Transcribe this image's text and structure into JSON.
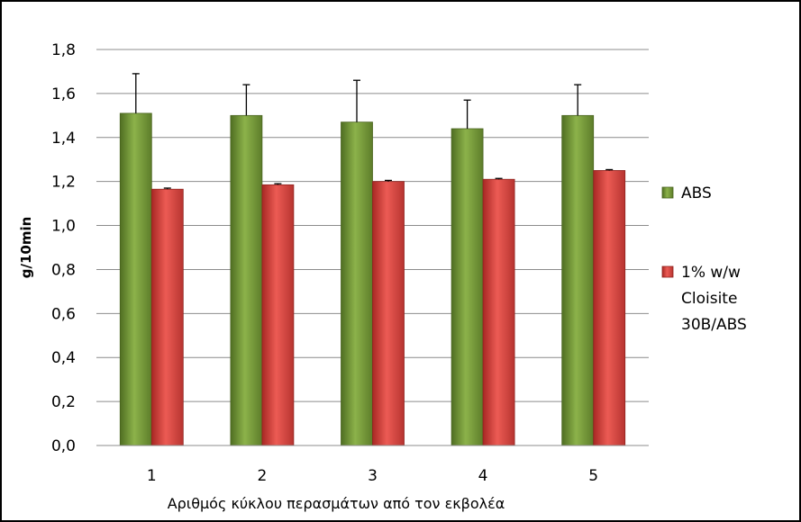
{
  "chart_data": {
    "type": "bar",
    "title": "",
    "xlabel": "Αριθμός κύκλου περασμάτων από τον εκβολέα",
    "ylabel": "g/10min",
    "categories": [
      "1",
      "2",
      "3",
      "4",
      "5"
    ],
    "ylim": [
      0,
      1.8
    ],
    "ytick_labels": [
      "0,0",
      "0,2",
      "0,4",
      "0,6",
      "0,8",
      "1,0",
      "1,2",
      "1,4",
      "1,6",
      "1,8"
    ],
    "grid": true,
    "legend_position": "right",
    "series": [
      {
        "name": "ABS",
        "legend_lines": [
          "ABS"
        ],
        "color": "#7a9a3a",
        "values": [
          1.51,
          1.5,
          1.47,
          1.44,
          1.5
        ],
        "errors": [
          0.18,
          0.14,
          0.19,
          0.13,
          0.14
        ]
      },
      {
        "name": "1% w/w Cloisite 30B/ABS",
        "legend_lines": [
          "1% w/w",
          "Cloisite",
          "30B/ABS"
        ],
        "color": "#d9403a",
        "values": [
          1.165,
          1.185,
          1.2,
          1.21,
          1.25
        ],
        "errors": [
          0.005,
          0.005,
          0.005,
          0.004,
          0.004
        ]
      }
    ]
  }
}
